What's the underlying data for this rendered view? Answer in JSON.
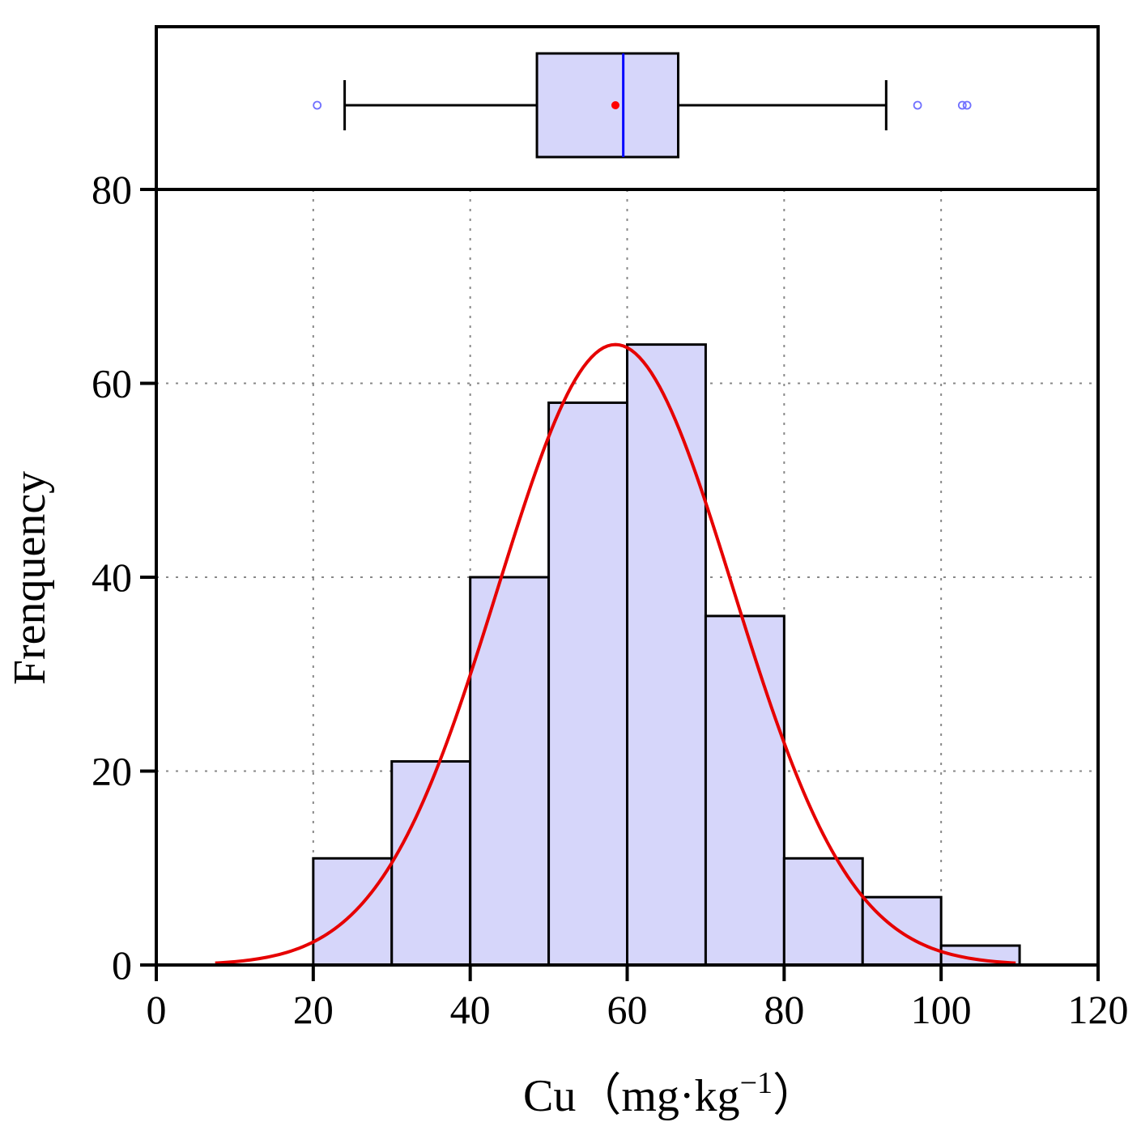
{
  "chart_data": {
    "type": "bar",
    "subtype": "histogram-with-normal-fit-and-boxplot",
    "title": "",
    "xlabel": "Cu",
    "xlabel_unit": "（mg·kg",
    "xlabel_unit_exp": "−1",
    "xlabel_unit_close": "）",
    "ylabel": "Frenquency",
    "xlim": [
      0,
      120
    ],
    "ylim": [
      0,
      80
    ],
    "x_ticks": [
      0,
      20,
      40,
      60,
      80,
      100,
      120
    ],
    "x_tick_labels": [
      "0",
      "20",
      "40",
      "60",
      "80",
      "100",
      "120"
    ],
    "y_ticks": [
      0,
      20,
      40,
      60,
      80
    ],
    "y_tick_labels": [
      "0",
      "20",
      "40",
      "60",
      "80"
    ],
    "grid": true,
    "bins": [
      {
        "x0": 20,
        "x1": 30,
        "count": 11
      },
      {
        "x0": 30,
        "x1": 40,
        "count": 21
      },
      {
        "x0": 40,
        "x1": 50,
        "count": 40
      },
      {
        "x0": 50,
        "x1": 60,
        "count": 58
      },
      {
        "x0": 60,
        "x1": 70,
        "count": 64
      },
      {
        "x0": 70,
        "x1": 80,
        "count": 36
      },
      {
        "x0": 80,
        "x1": 90,
        "count": 11
      },
      {
        "x0": 90,
        "x1": 100,
        "count": 7
      },
      {
        "x0": 100,
        "x1": 110,
        "count": 2
      }
    ],
    "normal_fit": {
      "mean": 58.5,
      "sd": 15.0,
      "peak": 64,
      "x_from": 7.5,
      "x_to": 109.5
    },
    "boxplot": {
      "whisker_low": 24,
      "q1": 48.5,
      "median": 59.5,
      "mean": 58.5,
      "q3": 66.5,
      "whisker_high": 93,
      "outliers": [
        20.5,
        97,
        102.7,
        103.3
      ]
    },
    "colors": {
      "bar_fill": "#d6d6fa",
      "bar_stroke": "#000000",
      "curve": "#e60000",
      "median_line": "#0000ff",
      "mean_marker": "#ff0000",
      "outlier": "#7070ff"
    }
  }
}
